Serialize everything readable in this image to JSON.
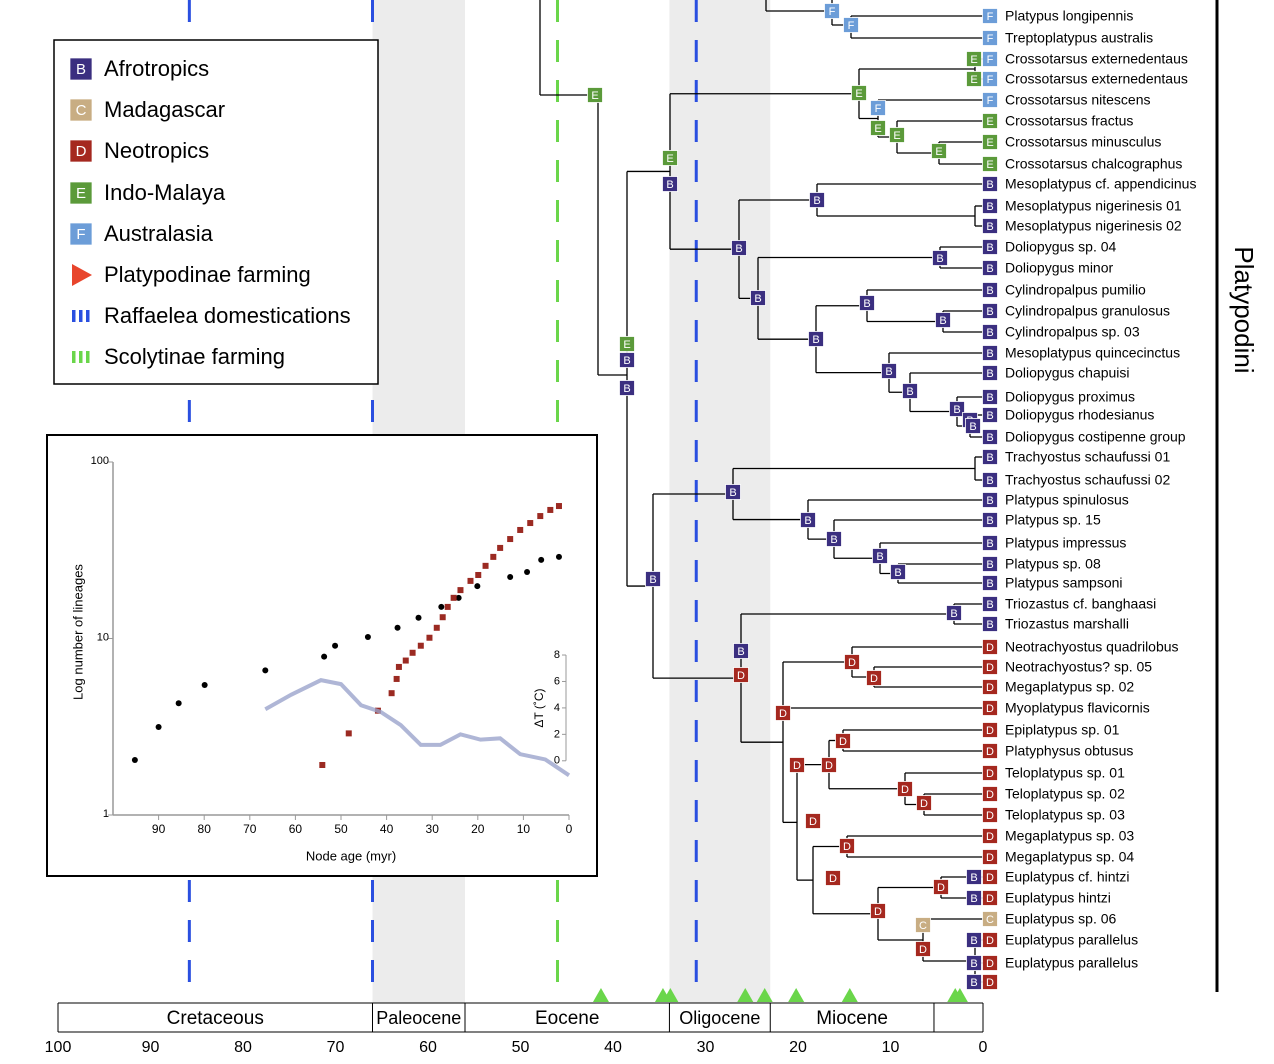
{
  "legend": {
    "regions": [
      {
        "code": "B",
        "label": "Afrotropics",
        "color": "#3b2f80"
      },
      {
        "code": "C",
        "label": "Madagascar",
        "color": "#c8ad83"
      },
      {
        "code": "D",
        "label": "Neotropics",
        "color": "#a5281f"
      },
      {
        "code": "E",
        "label": "Indo-Malaya",
        "color": "#5b9a3a"
      },
      {
        "code": "F",
        "label": "Australasia",
        "color": "#6c9dd8"
      }
    ],
    "platypodinae_farming": {
      "label": "Platypodinae farming",
      "color": "#e8452c"
    },
    "raffaelea_domestications": {
      "label": "Raffaelea domestications",
      "color": "#2a4fe0"
    },
    "scolytinae_farming": {
      "label": "Scolytinae farming",
      "color": "#6ad64a"
    }
  },
  "tree": {
    "clade_label": "Platypodini",
    "tips": [
      {
        "name": "Platypus longipennis",
        "regions": [
          "F"
        ]
      },
      {
        "name": "Treptoplatypus australis",
        "regions": [
          "F"
        ]
      },
      {
        "name": "Crossotarsus externedentaus",
        "regions": [
          "E",
          "F"
        ]
      },
      {
        "name": "Crossotarsus externedentaus",
        "regions": [
          "E",
          "F"
        ]
      },
      {
        "name": "Crossotarsus nitescens",
        "regions": [
          "F"
        ]
      },
      {
        "name": "Crossotarsus fractus",
        "regions": [
          "E"
        ]
      },
      {
        "name": "Crossotarsus minusculus",
        "regions": [
          "E"
        ]
      },
      {
        "name": "Crossotarsus chalcographus",
        "regions": [
          "E"
        ]
      },
      {
        "name": "Mesoplatypus cf. appendicinus",
        "regions": [
          "B"
        ]
      },
      {
        "name": "Mesoplatypus nigerinesis 01",
        "regions": [
          "B"
        ]
      },
      {
        "name": "Mesoplatypus nigerinesis 02",
        "regions": [
          "B"
        ]
      },
      {
        "name": "Doliopygus sp. 04",
        "regions": [
          "B"
        ]
      },
      {
        "name": "Doliopygus minor",
        "regions": [
          "B"
        ]
      },
      {
        "name": "Cylindropalpus pumilio",
        "regions": [
          "B"
        ]
      },
      {
        "name": "Cylindropalpus granulosus",
        "regions": [
          "B"
        ]
      },
      {
        "name": "Cylindropalpus sp. 03",
        "regions": [
          "B"
        ]
      },
      {
        "name": "Mesoplatypus quincecinctus",
        "regions": [
          "B"
        ]
      },
      {
        "name": "Doliopygus chapuisi",
        "regions": [
          "B"
        ]
      },
      {
        "name": "Doliopygus proximus",
        "regions": [
          "B"
        ]
      },
      {
        "name": "Doliopygus rhodesianus",
        "regions": [
          "B"
        ]
      },
      {
        "name": "Doliopygus costipenne group",
        "regions": [
          "B"
        ]
      },
      {
        "name": "Trachyostus schaufussi 01",
        "regions": [
          "B"
        ]
      },
      {
        "name": "Trachyostus schaufussi 02",
        "regions": [
          "B"
        ]
      },
      {
        "name": "Platypus spinulosus",
        "regions": [
          "B"
        ]
      },
      {
        "name": "Platypus sp. 15",
        "regions": [
          "B"
        ]
      },
      {
        "name": "Platypus impressus",
        "regions": [
          "B"
        ]
      },
      {
        "name": "Platypus sp. 08",
        "regions": [
          "B"
        ]
      },
      {
        "name": "Platypus sampsoni",
        "regions": [
          "B"
        ]
      },
      {
        "name": "Triozastus cf. banghaasi",
        "regions": [
          "B"
        ]
      },
      {
        "name": "Triozastus marshalli",
        "regions": [
          "B"
        ]
      },
      {
        "name": "Neotrachyostus quadrilobus",
        "regions": [
          "D"
        ]
      },
      {
        "name": "Neotrachyostus? sp. 05",
        "regions": [
          "D"
        ]
      },
      {
        "name": "Megaplatypus sp. 02",
        "regions": [
          "D"
        ]
      },
      {
        "name": "Myoplatypus flavicornis",
        "regions": [
          "D"
        ]
      },
      {
        "name": "Epiplatypus sp. 01",
        "regions": [
          "D"
        ]
      },
      {
        "name": "Platyphysus obtusus",
        "regions": [
          "D"
        ]
      },
      {
        "name": "Teloplatypus sp. 01",
        "regions": [
          "D"
        ]
      },
      {
        "name": "Teloplatypus sp. 02",
        "regions": [
          "D"
        ]
      },
      {
        "name": "Teloplatypus sp. 03",
        "regions": [
          "D"
        ]
      },
      {
        "name": "Megaplatypus sp. 03",
        "regions": [
          "D"
        ]
      },
      {
        "name": "Megaplatypus sp. 04",
        "regions": [
          "D"
        ]
      },
      {
        "name": "Euplatypus cf. hintzi",
        "regions": [
          "B",
          "D"
        ]
      },
      {
        "name": "Euplatypus hintzi",
        "regions": [
          "B",
          "D"
        ]
      },
      {
        "name": "Euplatypus sp. 06",
        "regions": [
          "C"
        ]
      },
      {
        "name": "Euplatypus parallelus",
        "regions": [
          "B",
          "D"
        ]
      },
      {
        "name": "Euplatypus parallelus",
        "regions": [
          "B",
          "D"
        ]
      },
      {
        "name": null,
        "regions": [
          "B",
          "D"
        ]
      }
    ],
    "nodes": [
      {
        "regions": [
          "F"
        ]
      },
      {
        "regions": [
          "F"
        ]
      },
      {
        "regions": [
          "E"
        ]
      },
      {
        "regions": [
          "E"
        ]
      },
      {
        "regions": [
          "F"
        ]
      },
      {
        "regions": [
          "E"
        ]
      },
      {
        "regions": [
          "E"
        ]
      },
      {
        "regions": [
          "E"
        ]
      },
      {
        "regions": [
          "E"
        ]
      },
      {
        "regions": [
          "B"
        ]
      },
      {
        "regions": [
          "B"
        ]
      },
      {
        "regions": [
          "B"
        ]
      },
      {
        "regions": [
          "B"
        ]
      },
      {
        "regions": [
          "B"
        ]
      },
      {
        "regions": [
          "B"
        ]
      },
      {
        "regions": [
          "B"
        ]
      },
      {
        "regions": [
          "B"
        ]
      },
      {
        "regions": [
          "E"
        ]
      },
      {
        "regions": [
          "B"
        ]
      },
      {
        "regions": [
          "B"
        ]
      },
      {
        "regions": [
          "B"
        ]
      },
      {
        "regions": [
          "B"
        ]
      },
      {
        "regions": [
          "B"
        ]
      },
      {
        "regions": [
          "B"
        ]
      },
      {
        "regions": [
          "B"
        ]
      },
      {
        "regions": [
          "B"
        ]
      },
      {
        "regions": [
          "B"
        ]
      },
      {
        "regions": [
          "B"
        ]
      },
      {
        "regions": [
          "B"
        ]
      },
      {
        "regions": [
          "B"
        ]
      },
      {
        "regions": [
          "B"
        ]
      },
      {
        "regions": [
          "B"
        ]
      },
      {
        "regions": [
          "B"
        ]
      },
      {
        "regions": [
          "D"
        ]
      },
      {
        "regions": [
          "D"
        ]
      },
      {
        "regions": [
          "D"
        ]
      },
      {
        "regions": [
          "D"
        ]
      },
      {
        "regions": [
          "D"
        ]
      },
      {
        "regions": [
          "D"
        ]
      },
      {
        "regions": [
          "D"
        ]
      },
      {
        "regions": [
          "D"
        ]
      },
      {
        "regions": [
          "D"
        ]
      },
      {
        "regions": [
          "D"
        ]
      },
      {
        "regions": [
          "D"
        ]
      },
      {
        "regions": [
          "D"
        ]
      },
      {
        "regions": [
          "D"
        ]
      },
      {
        "regions": [
          "D"
        ]
      },
      {
        "regions": [
          "C"
        ]
      },
      {
        "regions": [
          "D"
        ]
      }
    ]
  },
  "timescale": {
    "xlim": [
      100,
      0
    ],
    "xticks": [
      100,
      90,
      80,
      70,
      60,
      50,
      40,
      30,
      20,
      10,
      0
    ],
    "epochs": [
      {
        "name": "Cretaceous",
        "start": 100,
        "end": 66,
        "shaded": false
      },
      {
        "name": "Paleocene",
        "start": 66,
        "end": 56,
        "shaded": true
      },
      {
        "name": "Eocene",
        "start": 56,
        "end": 33.9,
        "shaded": false
      },
      {
        "name": "Oligocene",
        "start": 33.9,
        "end": 23,
        "shaded": true
      },
      {
        "name": "Miocene",
        "start": 23,
        "end": 5.3,
        "shaded": false
      },
      {
        "name": null,
        "start": 5.3,
        "end": 0,
        "shaded": false
      }
    ],
    "raffaelea_domestications": [
      85.8,
      66,
      31
    ],
    "scolytinae_farming": [
      46
    ],
    "platypodinae_farming": [
      41.3,
      34.6,
      33.8,
      25.7,
      23.6,
      20.2,
      14.4,
      3.0,
      2.5
    ],
    "triangle_color": "#6ad64a"
  },
  "chart_data": {
    "type": "scatter",
    "xlabel": "Node age (myr)",
    "ylabel": "Log number of lineages",
    "y2label": "ΔT (˚C)",
    "xlim": [
      100,
      0
    ],
    "xticks": [
      90,
      80,
      70,
      60,
      50,
      40,
      30,
      20,
      10,
      0
    ],
    "ylim": [
      1,
      100
    ],
    "yticks": [
      1,
      10,
      100
    ],
    "log_y": true,
    "y2lim": [
      -4.1,
      22.6
    ],
    "y2ticks": [
      0,
      2,
      4,
      6,
      8
    ],
    "series": [
      {
        "color": "#000000",
        "marker": "circle",
        "x": [
          95.2,
          90,
          85.6,
          79.9,
          66.6,
          53.7,
          51.3,
          44.1,
          37.6,
          33,
          28,
          24.2,
          20.1,
          12.9,
          9.2,
          6.1,
          2.2
        ],
        "values": [
          2.05,
          3.15,
          4.3,
          5.45,
          6.6,
          7.9,
          9.1,
          10.2,
          11.5,
          13.1,
          15.1,
          17,
          19.8,
          22.3,
          23.8,
          27.9,
          29
        ]
      },
      {
        "color": "#9b2a22",
        "marker": "square",
        "x": [
          54.1,
          48.3,
          41.9,
          38.9,
          37.8,
          37.3,
          35.8,
          34.3,
          32.5,
          30.6,
          29,
          27.7,
          26.6,
          25.3,
          23.8,
          21.6,
          19.9,
          18.3,
          16.6,
          15.1,
          12.9,
          10.7,
          8.5,
          6.3,
          4.1,
          2.2
        ],
        "values": [
          1.92,
          2.9,
          3.9,
          4.9,
          5.9,
          6.9,
          7.5,
          8.3,
          9.1,
          10.1,
          11.5,
          13.2,
          15.1,
          17,
          18.8,
          21.2,
          22.9,
          25.8,
          29,
          32.6,
          36.6,
          41.2,
          45.1,
          49.4,
          53.5,
          56.3
        ]
      },
      {
        "color": "#9ba4cc",
        "marker": "line",
        "axis": "y2",
        "x": [
          66.6,
          60.9,
          54.4,
          50,
          45.6,
          41.3,
          36.9,
          32.5,
          28.2,
          23.8,
          19.4,
          15.1,
          10.7,
          5.2,
          0
        ],
        "values": [
          3.9,
          5,
          6.1,
          5.8,
          4.2,
          3.7,
          2.7,
          1.2,
          1.2,
          2,
          1.6,
          1.7,
          0.5,
          0.1,
          -1.1
        ]
      }
    ]
  }
}
